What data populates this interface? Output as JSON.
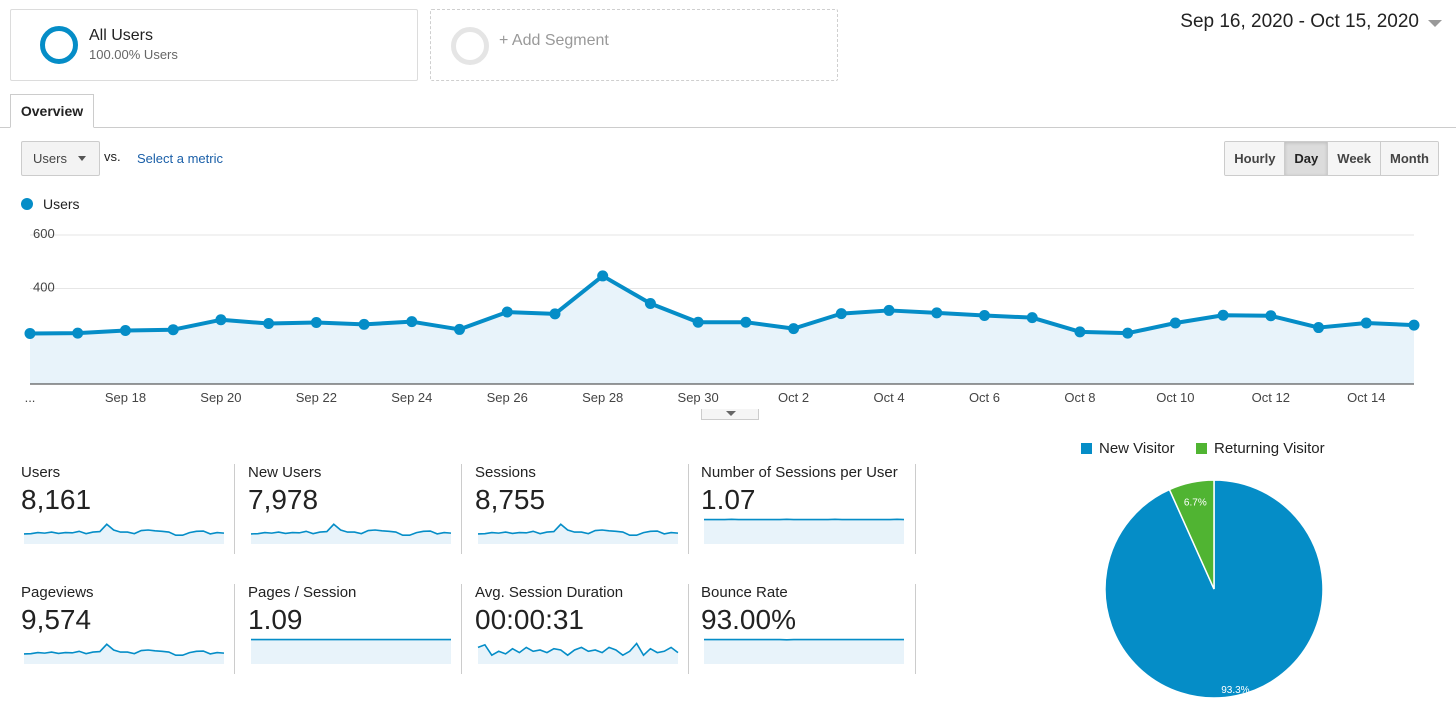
{
  "colors": {
    "primary": "#058dc7",
    "returning": "#50b432",
    "fill": "#e8f3fa"
  },
  "segments": {
    "all_users": {
      "title": "All Users",
      "subtitle": "100.00% Users"
    },
    "add_label": "+ Add Segment"
  },
  "date_range": "Sep 16, 2020 - Oct 15, 2020",
  "tabs": {
    "overview": "Overview"
  },
  "metric_select": {
    "value": "Users",
    "vs": "vs.",
    "select_metric": "Select a metric"
  },
  "granularity": {
    "options": [
      "Hourly",
      "Day",
      "Week",
      "Month"
    ],
    "active": "Day"
  },
  "legend": {
    "series": "Users"
  },
  "chart_data": [
    {
      "type": "area",
      "series": [
        {
          "name": "Users",
          "values": [
            232,
            233,
            243,
            246,
            283,
            269,
            273,
            266,
            276,
            247,
            312,
            305,
            447,
            344,
            274,
            274,
            250,
            306,
            318,
            309,
            299,
            291,
            238,
            233,
            271,
            300,
            298,
            254,
            271,
            263
          ]
        }
      ],
      "x": [
        "Sep 16",
        "Sep 17",
        "Sep 18",
        "Sep 19",
        "Sep 20",
        "Sep 21",
        "Sep 22",
        "Sep 23",
        "Sep 24",
        "Sep 25",
        "Sep 26",
        "Sep 27",
        "Sep 28",
        "Sep 29",
        "Sep 30",
        "Oct 1",
        "Oct 2",
        "Oct 3",
        "Oct 4",
        "Oct 5",
        "Oct 6",
        "Oct 7",
        "Oct 8",
        "Oct 9",
        "Oct 10",
        "Oct 11",
        "Oct 12",
        "Oct 13",
        "Oct 14",
        "Oct 15"
      ],
      "x_tick_labels": [
        "...",
        "Sep 18",
        "Sep 20",
        "Sep 22",
        "Sep 24",
        "Sep 26",
        "Sep 28",
        "Sep 30",
        "Oct 2",
        "Oct 4",
        "Oct 6",
        "Oct 8",
        "Oct 10",
        "Oct 12",
        "Oct 14"
      ],
      "y_ticks": [
        200,
        400,
        600
      ],
      "ylim": [
        0,
        600
      ],
      "grid": true
    },
    {
      "type": "pie",
      "categories": [
        "New Visitor",
        "Returning Visitor"
      ],
      "values": [
        93.3,
        6.7
      ],
      "labels": [
        "93.3%",
        "6.7%"
      ],
      "legend": "top"
    }
  ],
  "tiles": [
    {
      "label": "Users",
      "value": "8,161",
      "spark": [
        0.35,
        0.36,
        0.4,
        0.38,
        0.42,
        0.37,
        0.4,
        0.39,
        0.45,
        0.36,
        0.42,
        0.44,
        0.72,
        0.5,
        0.42,
        0.42,
        0.36,
        0.48,
        0.5,
        0.47,
        0.45,
        0.42,
        0.3,
        0.3,
        0.4,
        0.45,
        0.46,
        0.35,
        0.4,
        0.38
      ]
    },
    {
      "label": "New Users",
      "value": "7,978",
      "spark": [
        0.35,
        0.36,
        0.4,
        0.38,
        0.42,
        0.37,
        0.4,
        0.39,
        0.45,
        0.36,
        0.42,
        0.44,
        0.72,
        0.5,
        0.42,
        0.42,
        0.36,
        0.48,
        0.5,
        0.47,
        0.45,
        0.42,
        0.3,
        0.3,
        0.4,
        0.45,
        0.46,
        0.35,
        0.4,
        0.38
      ]
    },
    {
      "label": "Sessions",
      "value": "8,755",
      "spark": [
        0.35,
        0.36,
        0.4,
        0.38,
        0.42,
        0.37,
        0.4,
        0.39,
        0.45,
        0.36,
        0.42,
        0.44,
        0.72,
        0.5,
        0.42,
        0.42,
        0.36,
        0.48,
        0.5,
        0.47,
        0.45,
        0.42,
        0.3,
        0.3,
        0.4,
        0.45,
        0.46,
        0.35,
        0.4,
        0.38
      ]
    },
    {
      "label": "Number of Sessions per User",
      "value": "1.07",
      "spark": [
        0.9,
        0.9,
        0.9,
        0.9,
        0.91,
        0.9,
        0.9,
        0.9,
        0.9,
        0.9,
        0.9,
        0.9,
        0.91,
        0.9,
        0.9,
        0.9,
        0.9,
        0.9,
        0.9,
        0.91,
        0.9,
        0.9,
        0.9,
        0.9,
        0.9,
        0.9,
        0.9,
        0.9,
        0.91,
        0.9
      ]
    },
    {
      "label": "Pageviews",
      "value": "9,574",
      "spark": [
        0.35,
        0.36,
        0.4,
        0.38,
        0.42,
        0.37,
        0.4,
        0.39,
        0.45,
        0.36,
        0.42,
        0.44,
        0.72,
        0.5,
        0.42,
        0.42,
        0.36,
        0.48,
        0.5,
        0.47,
        0.45,
        0.42,
        0.3,
        0.3,
        0.4,
        0.45,
        0.46,
        0.35,
        0.4,
        0.38
      ]
    },
    {
      "label": "Pages / Session",
      "value": "1.09",
      "spark": [
        0.9,
        0.9,
        0.9,
        0.9,
        0.9,
        0.9,
        0.9,
        0.9,
        0.9,
        0.9,
        0.9,
        0.9,
        0.9,
        0.9,
        0.9,
        0.9,
        0.9,
        0.9,
        0.9,
        0.9,
        0.9,
        0.9,
        0.9,
        0.9,
        0.9,
        0.9,
        0.9,
        0.9,
        0.9,
        0.9
      ]
    },
    {
      "label": "Avg. Session Duration",
      "value": "00:00:31",
      "spark": [
        0.6,
        0.7,
        0.3,
        0.45,
        0.35,
        0.55,
        0.4,
        0.6,
        0.45,
        0.5,
        0.4,
        0.55,
        0.5,
        0.3,
        0.5,
        0.6,
        0.45,
        0.5,
        0.4,
        0.6,
        0.5,
        0.3,
        0.45,
        0.75,
        0.3,
        0.55,
        0.4,
        0.45,
        0.6,
        0.4
      ]
    },
    {
      "label": "Bounce Rate",
      "value": "93.00%",
      "spark": [
        0.9,
        0.9,
        0.9,
        0.9,
        0.9,
        0.9,
        0.9,
        0.9,
        0.9,
        0.9,
        0.9,
        0.9,
        0.89,
        0.9,
        0.9,
        0.9,
        0.9,
        0.9,
        0.9,
        0.9,
        0.9,
        0.9,
        0.9,
        0.9,
        0.9,
        0.9,
        0.9,
        0.9,
        0.9,
        0.9
      ]
    }
  ]
}
